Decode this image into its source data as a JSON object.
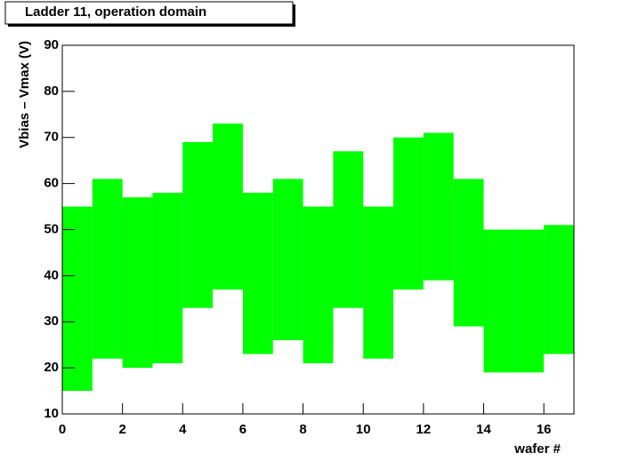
{
  "chart_data": {
    "type": "range_bar",
    "title": "Ladder 11, operation domain",
    "x_label": "wafer #",
    "y_label": "Vbias – Vmax (V)",
    "bins": [
      0,
      1,
      2,
      3,
      4,
      5,
      6,
      7,
      8,
      9,
      10,
      11,
      12,
      13,
      14,
      15,
      16,
      17
    ],
    "low": [
      15,
      22,
      20,
      21,
      33,
      37,
      23,
      26,
      21,
      33,
      22,
      37,
      39,
      29,
      19,
      19,
      23
    ],
    "high": [
      55,
      61,
      57,
      58,
      69,
      73,
      58,
      61,
      55,
      67,
      55,
      70,
      71,
      61,
      50,
      50,
      51
    ],
    "color": "#00ff00",
    "xlim": [
      0,
      17
    ],
    "xticks": [
      0,
      2,
      4,
      6,
      8,
      10,
      12,
      14,
      16
    ],
    "ylim": [
      10,
      90
    ],
    "yticks": [
      10,
      20,
      30,
      40,
      50,
      60,
      70,
      80,
      90
    ],
    "grid": false
  }
}
